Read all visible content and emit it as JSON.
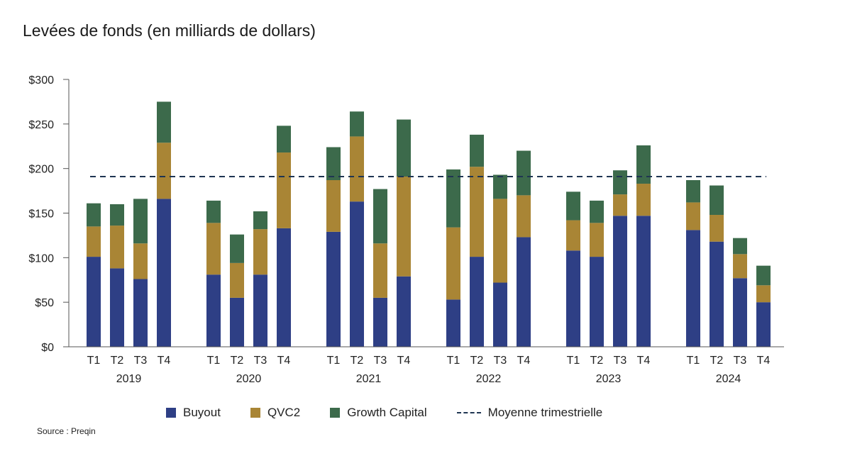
{
  "chart_data": {
    "type": "bar",
    "stacked": true,
    "title": "Levées de fonds (en milliards de dollars)",
    "years": [
      "2019",
      "2020",
      "2021",
      "2022",
      "2023",
      "2024"
    ],
    "quarters": [
      "T1",
      "T2",
      "T3",
      "T4"
    ],
    "ylim": [
      0,
      300
    ],
    "yticks": [
      0,
      50,
      100,
      150,
      200,
      250,
      300
    ],
    "ytick_labels": [
      "$0",
      "$50",
      "$100",
      "$150",
      "$200",
      "$250",
      "$300"
    ],
    "series": [
      {
        "name": "Buyout",
        "color": "#2e3f85",
        "values": [
          101,
          88,
          76,
          166,
          81,
          55,
          81,
          133,
          129,
          163,
          55,
          79,
          53,
          101,
          72,
          123,
          108,
          101,
          147,
          147,
          131,
          118,
          77,
          50
        ]
      },
      {
        "name": "QVC2",
        "color": "#a98535",
        "values": [
          34,
          48,
          40,
          63,
          58,
          39,
          51,
          85,
          58,
          73,
          61,
          112,
          81,
          101,
          94,
          47,
          34,
          38,
          24,
          36,
          31,
          30,
          27,
          19
        ]
      },
      {
        "name": "Growth Capital",
        "color": "#3c6a4b",
        "values": [
          26,
          24,
          50,
          46,
          25,
          32,
          20,
          30,
          37,
          28,
          61,
          64,
          65,
          36,
          27,
          50,
          32,
          25,
          27,
          43,
          25,
          33,
          18,
          22
        ]
      }
    ],
    "average": {
      "name": "Moyenne trimestrielle",
      "value": 191,
      "color": "#1f3552"
    },
    "legend_position": "bottom"
  },
  "source": "Source : Preqin"
}
